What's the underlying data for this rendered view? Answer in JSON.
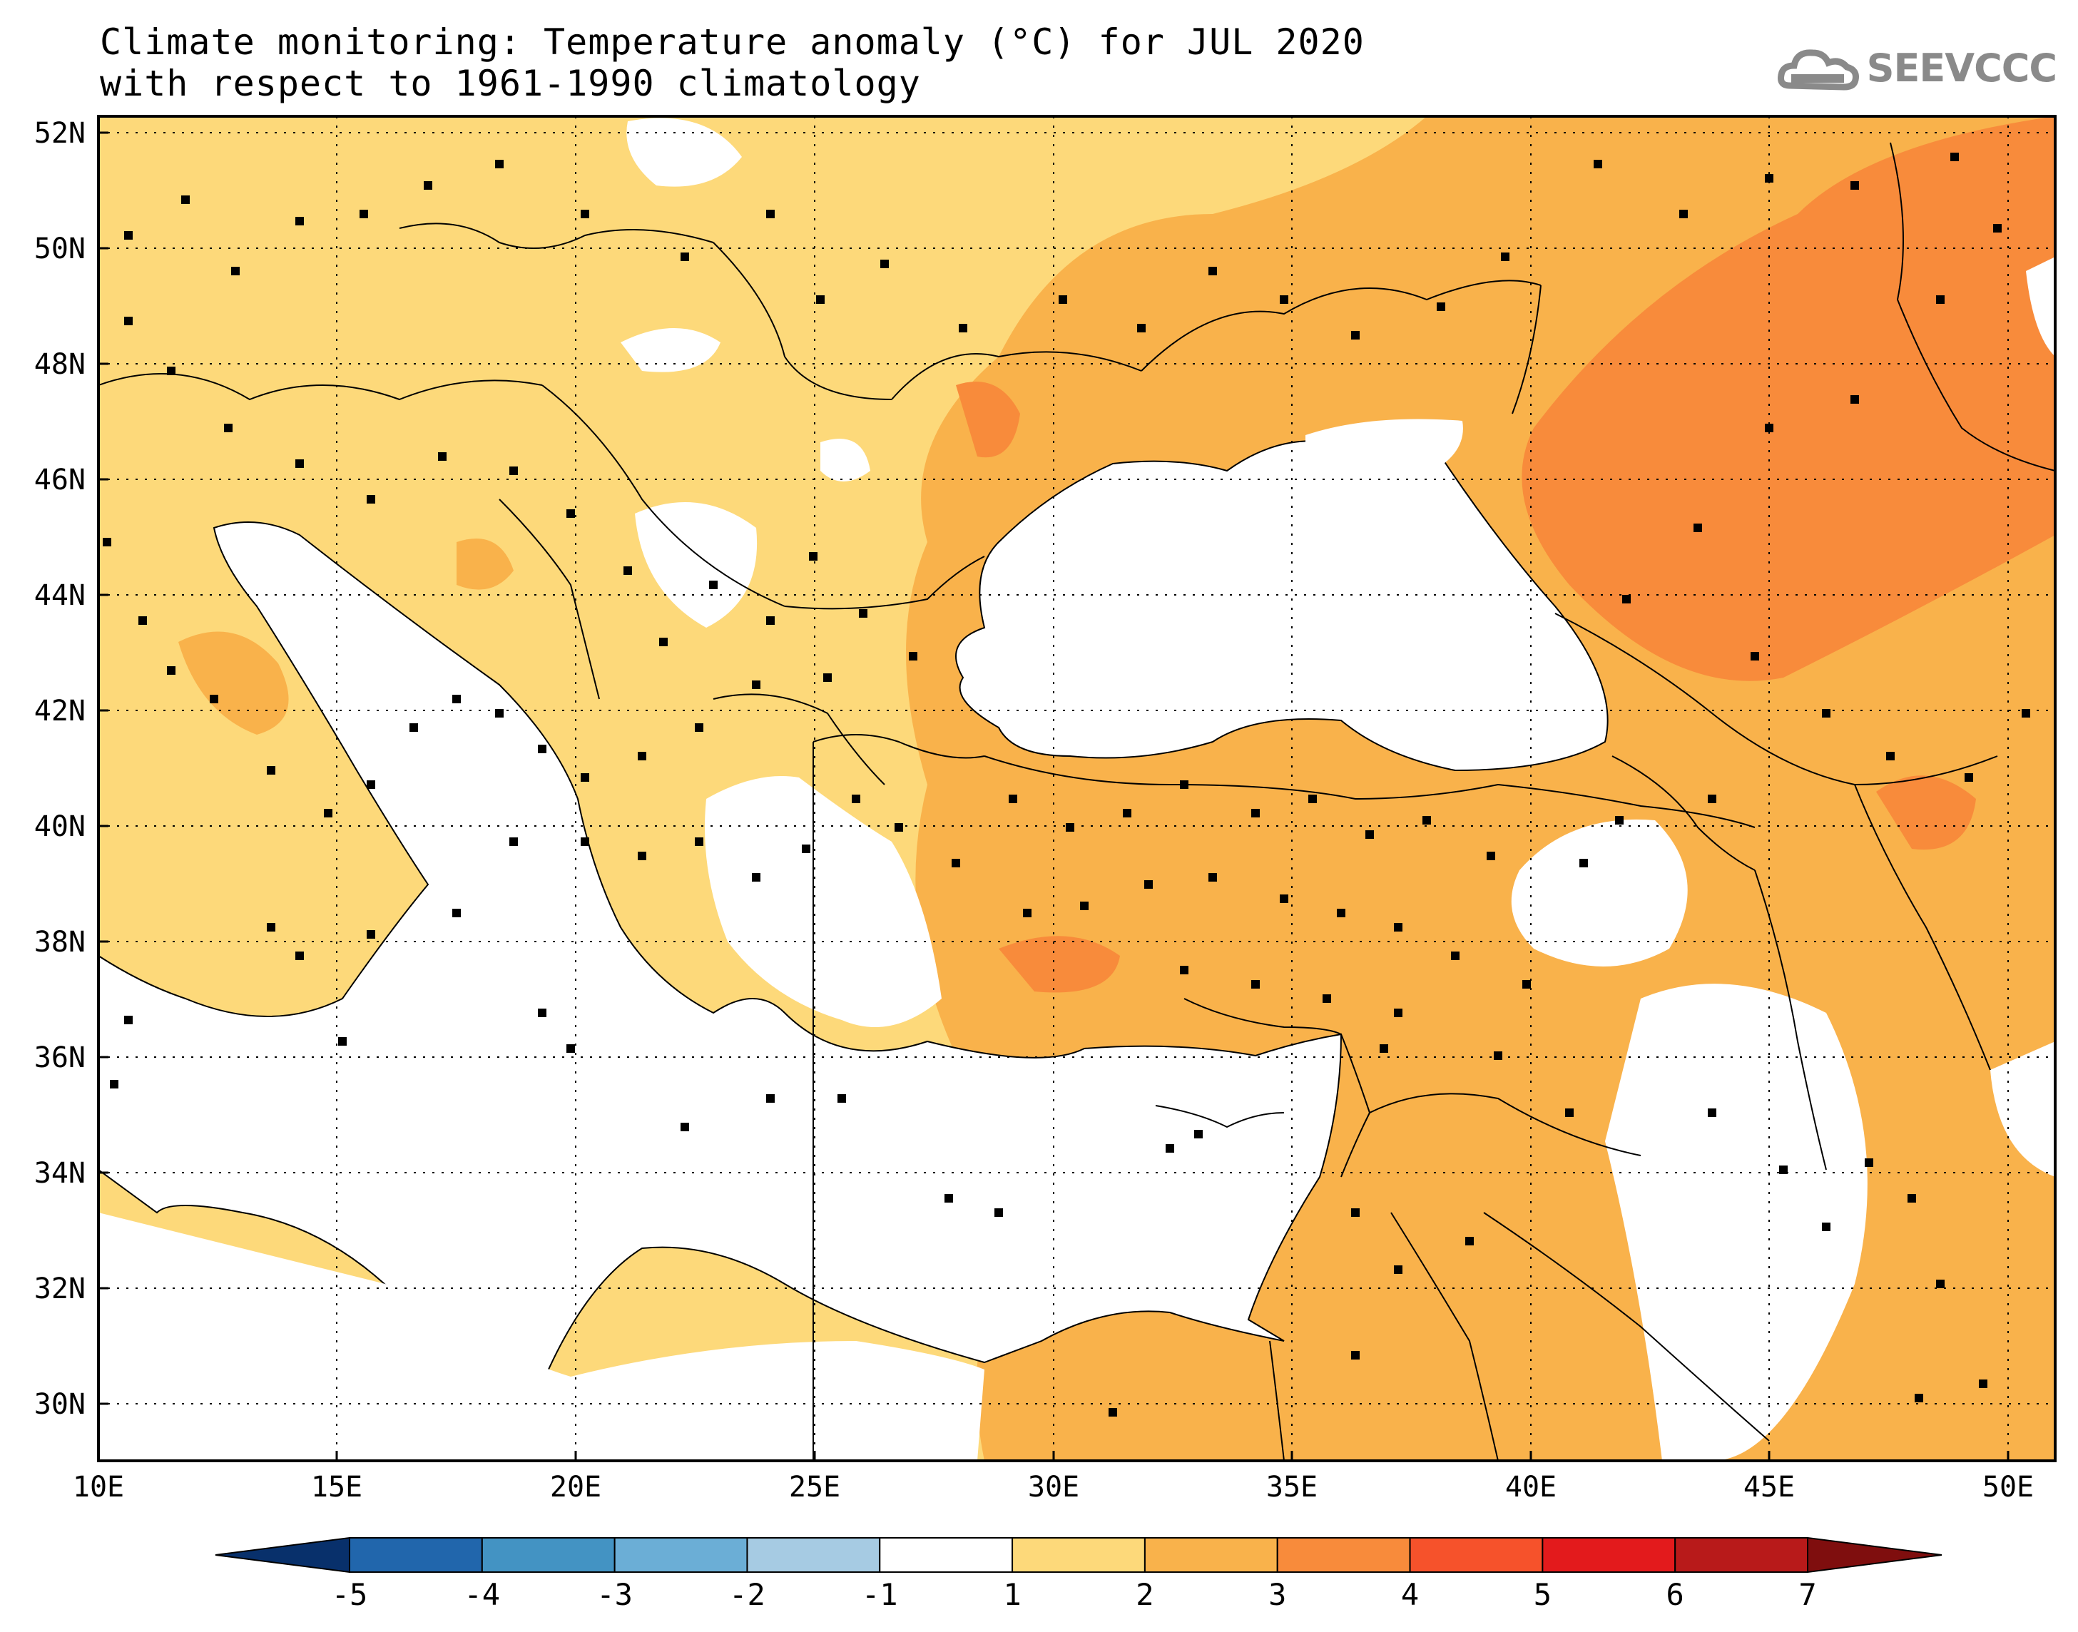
{
  "title": {
    "line1": "Climate monitoring: Temperature anomaly (°C) for JUL 2020",
    "line2": "with respect to 1961-1990 climatology"
  },
  "logo": {
    "text": "SEEVCCC",
    "icon": "cloud-icon"
  },
  "map": {
    "lon_range": [
      10,
      51
    ],
    "lat_range": [
      29,
      52.5
    ],
    "lon_ticks": [
      "10E",
      "15E",
      "20E",
      "25E",
      "30E",
      "35E",
      "40E",
      "45E",
      "50E"
    ],
    "lat_ticks": [
      "30N",
      "32N",
      "34N",
      "36N",
      "38N",
      "40N",
      "42N",
      "44N",
      "46N",
      "48N",
      "50N",
      "52N"
    ],
    "grid": "dotted"
  },
  "colorbar": {
    "labels": [
      "-5",
      "-4",
      "-3",
      "-2",
      "-1",
      "1",
      "2",
      "3",
      "4",
      "5",
      "6",
      "7"
    ],
    "colors": [
      "#08306b",
      "#2166ac",
      "#4393c3",
      "#6baed6",
      "#a6cbe3",
      "#ffffff",
      "#fdd97a",
      "#f9b24b",
      "#f88b3b",
      "#f6522b",
      "#e31a1c",
      "#b81a1a",
      "#7f0e0e"
    ],
    "extend": "both"
  },
  "colors": {
    "bin_1_2": "#fdd97a",
    "bin_2_3": "#f9b24b",
    "bin_3_4": "#f88b3b",
    "bin_4_5": "#f6522b",
    "sea": "#ffffff"
  }
}
